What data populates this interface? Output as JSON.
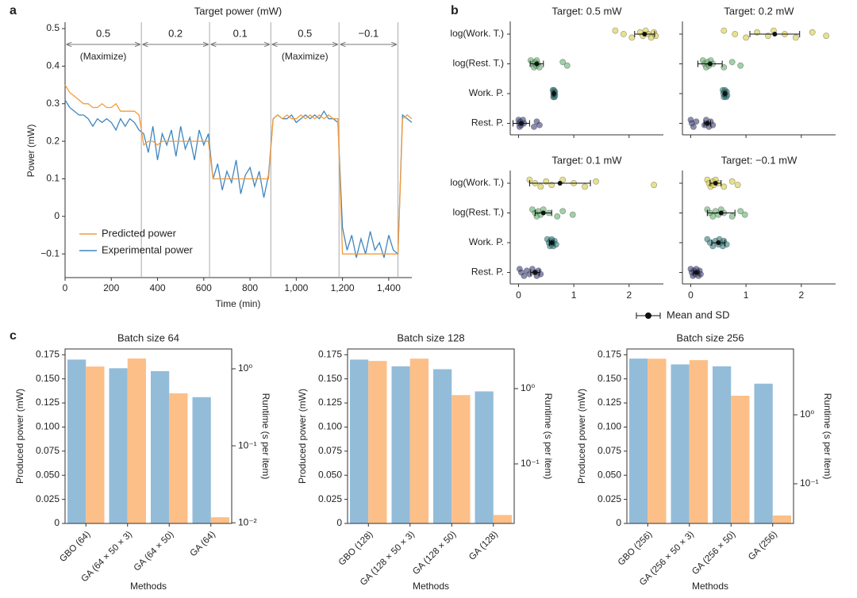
{
  "panel_letters": [
    "a",
    "b",
    "c"
  ],
  "chart_data": [
    {
      "type": "line",
      "title": "Target power (mW)",
      "xlabel": "Time (min)",
      "ylabel": "Power (mW)",
      "xlim": [
        0,
        1500
      ],
      "ylim": [
        -0.163,
        0.517
      ],
      "xticks": [
        0,
        200,
        400,
        600,
        800,
        {
          "value": 1000,
          "label": "1,000"
        },
        {
          "value": 1200,
          "label": "1,200"
        },
        {
          "value": 1400,
          "label": "1,400"
        }
      ],
      "yticks": [
        {
          "value": -0.1,
          "label": "−0.1"
        },
        0,
        0.1,
        0.2,
        0.3,
        0.4,
        0.5
      ],
      "legend": "lower left",
      "segments": [
        {
          "label": "0.5",
          "start": 0,
          "end": 330,
          "note": "(Maximize)"
        },
        {
          "label": "0.2",
          "start": 330,
          "end": 625
        },
        {
          "label": "0.1",
          "start": 625,
          "end": 890
        },
        {
          "label": "0.5",
          "start": 890,
          "end": 1185,
          "note": "(Maximize)"
        },
        {
          "label": "−0.1",
          "start": 1185,
          "end": 1440
        }
      ],
      "x": [
        0,
        20,
        40,
        60,
        80,
        100,
        120,
        140,
        160,
        180,
        200,
        220,
        240,
        260,
        280,
        300,
        320,
        340,
        360,
        380,
        400,
        420,
        440,
        460,
        480,
        500,
        520,
        540,
        560,
        580,
        600,
        620,
        640,
        660,
        680,
        700,
        720,
        740,
        760,
        780,
        800,
        820,
        840,
        860,
        880,
        900,
        920,
        940,
        960,
        980,
        1000,
        1020,
        1040,
        1060,
        1080,
        1100,
        1120,
        1140,
        1160,
        1180,
        1200,
        1220,
        1240,
        1260,
        1280,
        1300,
        1320,
        1340,
        1360,
        1380,
        1400,
        1420,
        1440,
        1460,
        1480,
        1500
      ],
      "series": [
        {
          "name": "Predicted power",
          "color": "#f39b3b",
          "values": [
            0.35,
            0.33,
            0.32,
            0.31,
            0.3,
            0.3,
            0.29,
            0.29,
            0.3,
            0.29,
            0.29,
            0.3,
            0.28,
            0.28,
            0.28,
            0.28,
            0.27,
            0.19,
            0.2,
            0.2,
            0.19,
            0.2,
            0.2,
            0.2,
            0.2,
            0.2,
            0.2,
            0.2,
            0.2,
            0.2,
            0.2,
            0.2,
            0.1,
            0.1,
            0.1,
            0.1,
            0.1,
            0.1,
            0.1,
            0.1,
            0.1,
            0.1,
            0.1,
            0.1,
            0.1,
            0.26,
            0.27,
            0.26,
            0.27,
            0.26,
            0.26,
            0.27,
            0.26,
            0.27,
            0.26,
            0.27,
            0.26,
            0.27,
            0.26,
            0.26,
            -0.1,
            -0.1,
            -0.1,
            -0.1,
            -0.1,
            -0.1,
            -0.1,
            -0.1,
            -0.1,
            -0.1,
            -0.1,
            -0.1,
            -0.1,
            0.26,
            0.27,
            0.26
          ]
        },
        {
          "name": "Experimental power",
          "color": "#3f86c0",
          "values": [
            0.31,
            0.29,
            0.28,
            0.27,
            0.27,
            0.26,
            0.24,
            0.26,
            0.25,
            0.26,
            0.25,
            0.23,
            0.26,
            0.24,
            0.26,
            0.25,
            0.23,
            0.22,
            0.17,
            0.24,
            0.15,
            0.22,
            0.19,
            0.23,
            0.16,
            0.24,
            0.18,
            0.21,
            0.15,
            0.23,
            0.19,
            0.22,
            0.1,
            0.14,
            0.07,
            0.12,
            0.09,
            0.15,
            0.06,
            0.11,
            0.13,
            0.08,
            0.12,
            0.05,
            0.11,
            0.26,
            0.27,
            0.26,
            0.26,
            0.27,
            0.25,
            0.26,
            0.27,
            0.26,
            0.27,
            0.26,
            0.28,
            0.26,
            0.26,
            0.25,
            -0.03,
            -0.09,
            -0.05,
            -0.11,
            -0.06,
            -0.1,
            -0.04,
            -0.09,
            -0.07,
            -0.11,
            -0.05,
            -0.09,
            -0.1,
            0.27,
            0.26,
            0.25
          ]
        }
      ]
    },
    {
      "type": "strip",
      "categories": [
        "log(Work. T.)",
        "log(Rest. T.)",
        "Work. P.",
        "Rest. P."
      ],
      "colors": [
        "#d8cd3f",
        "#63b06d",
        "#2f7f7e",
        "#3d4179"
      ],
      "xlim": [
        -0.15,
        2.62
      ],
      "xticks": [
        0,
        1,
        2
      ],
      "legend": "Mean and SD",
      "panels": [
        {
          "title": "Target: 0.5 mW",
          "rows": [
            {
              "values": [
                1.75,
                1.9,
                2.05,
                2.2,
                2.25,
                2.3,
                2.35,
                2.4,
                2.45,
                2.48
              ],
              "mean": 2.28,
              "sd": 0.18
            },
            {
              "values": [
                0.22,
                0.26,
                0.28,
                0.3,
                0.32,
                0.33,
                0.35,
                0.38,
                0.8,
                0.88
              ],
              "mean": 0.33,
              "sd": 0.12
            },
            {
              "values": [
                0.62,
                0.63,
                0.63,
                0.64,
                0.64,
                0.64,
                0.65,
                0.65,
                0.66,
                0.66
              ],
              "mean": 0.64,
              "sd": 0.01
            },
            {
              "values": [
                0.0,
                0.01,
                0.02,
                0.03,
                0.05,
                0.08,
                0.1,
                0.28,
                0.33,
                0.38
              ],
              "mean": 0.05,
              "sd": 0.15
            }
          ]
        },
        {
          "title": "Target: 0.2 mW",
          "rows": [
            {
              "values": [
                0.6,
                0.8,
                1.0,
                1.2,
                1.4,
                1.5,
                1.7,
                1.9,
                2.2,
                2.45
              ],
              "mean": 1.52,
              "sd": 0.45
            },
            {
              "values": [
                0.22,
                0.25,
                0.28,
                0.3,
                0.33,
                0.36,
                0.4,
                0.6,
                0.75,
                0.9
              ],
              "mean": 0.35,
              "sd": 0.22
            },
            {
              "values": [
                0.58,
                0.59,
                0.6,
                0.61,
                0.62,
                0.62,
                0.63,
                0.64,
                0.65,
                0.66
              ],
              "mean": 0.62,
              "sd": 0.02
            },
            {
              "values": [
                0.0,
                0.02,
                0.05,
                0.1,
                0.25,
                0.28,
                0.3,
                0.33,
                0.36,
                0.4
              ],
              "mean": 0.3,
              "sd": 0.06
            }
          ]
        },
        {
          "title": "Target: 0.1 mW",
          "rows": [
            {
              "values": [
                0.2,
                0.3,
                0.4,
                0.5,
                0.6,
                0.8,
                1.0,
                1.2,
                1.4,
                2.45
              ],
              "mean": 0.75,
              "sd": 0.55
            },
            {
              "values": [
                0.25,
                0.3,
                0.33,
                0.36,
                0.4,
                0.45,
                0.55,
                0.7,
                0.8,
                0.98
              ],
              "mean": 0.45,
              "sd": 0.15
            },
            {
              "values": [
                0.52,
                0.55,
                0.57,
                0.58,
                0.6,
                0.6,
                0.62,
                0.63,
                0.65,
                0.68
              ],
              "mean": 0.6,
              "sd": 0.04
            },
            {
              "values": [
                0.02,
                0.05,
                0.1,
                0.15,
                0.2,
                0.25,
                0.3,
                0.33,
                0.36,
                0.4
              ],
              "mean": 0.3,
              "sd": 0.08
            }
          ]
        },
        {
          "title": "Target: −0.1 mW",
          "rows": [
            {
              "values": [
                0.3,
                0.33,
                0.36,
                0.4,
                0.42,
                0.45,
                0.5,
                0.6,
                0.75,
                0.85
              ],
              "mean": 0.45,
              "sd": 0.1
            },
            {
              "values": [
                0.3,
                0.35,
                0.4,
                0.45,
                0.5,
                0.55,
                0.6,
                0.75,
                0.9,
                0.98
              ],
              "mean": 0.55,
              "sd": 0.25
            },
            {
              "values": [
                0.3,
                0.35,
                0.4,
                0.45,
                0.5,
                0.52,
                0.55,
                0.58,
                0.6,
                0.65
              ],
              "mean": 0.5,
              "sd": 0.12
            },
            {
              "values": [
                0.0,
                0.02,
                0.04,
                0.06,
                0.08,
                0.1,
                0.12,
                0.14,
                0.16,
                0.18
              ],
              "mean": 0.1,
              "sd": 0.05
            }
          ]
        }
      ]
    },
    {
      "type": "bar",
      "title": "Batch size 64",
      "xlabel": "Methods",
      "ylabel": "Produced power (mW)",
      "y2label": "Runtime (s per item)",
      "categories": [
        "GBO (64)",
        "GA (64 × 50 × 3)",
        "GA (64 × 50)",
        "GA (64)"
      ],
      "ylim": [
        0,
        0.181
      ],
      "yticks": [
        0,
        0.025,
        {
          "value": 0.05,
          "label": "0.050"
        },
        0.075,
        {
          "value": 0.1,
          "label": "0.100"
        },
        0.125,
        {
          "value": 0.15,
          "label": "0.150"
        },
        0.175
      ],
      "y2lim": [
        0.0098,
        1.81
      ],
      "y2log": true,
      "y2ticks": [
        {
          "value": 0.01,
          "label": "10⁻²"
        },
        {
          "value": 0.1,
          "label": "10⁻¹"
        },
        {
          "value": 1,
          "label": "10⁰"
        }
      ],
      "series": [
        {
          "color": "#93bcd9",
          "values": [
            0.17,
            0.161,
            0.158,
            0.131
          ]
        },
        {
          "color": "#fdbf88",
          "axis": "y2",
          "values": [
            1.07,
            1.36,
            0.48,
            0.0118
          ]
        }
      ]
    },
    {
      "type": "bar",
      "title": "Batch size 128",
      "xlabel": "Methods",
      "ylabel": "Produced power (mW)",
      "y2label": "Runtime (s per item)",
      "categories": [
        "GBO (128)",
        "GA (128 × 50 × 3)",
        "GA (128 × 50)",
        "GA (128)"
      ],
      "ylim": [
        0,
        0.181
      ],
      "yticks": [
        0,
        0.025,
        {
          "value": 0.05,
          "label": "0.050"
        },
        0.075,
        {
          "value": 0.1,
          "label": "0.100"
        },
        0.125,
        {
          "value": 0.15,
          "label": "0.150"
        },
        0.175
      ],
      "y2lim": [
        0.0162,
        3.36
      ],
      "y2log": true,
      "y2ticks": [
        {
          "value": 0.1,
          "label": "10⁻¹"
        },
        {
          "value": 1,
          "label": "10⁰"
        }
      ],
      "series": [
        {
          "color": "#93bcd9",
          "values": [
            0.17,
            0.163,
            0.16,
            0.137
          ]
        },
        {
          "color": "#fdbf88",
          "axis": "y2",
          "values": [
            2.33,
            2.5,
            0.82,
            0.021
          ]
        }
      ]
    },
    {
      "type": "bar",
      "title": "Batch size 256",
      "xlabel": "Methods",
      "ylabel": "Produced power (mW)",
      "y2label": "Runtime (s per item)",
      "categories": [
        "GBO (256)",
        "GA (256 × 50 × 3)",
        "GA (256 × 50)",
        "GA (256)"
      ],
      "ylim": [
        0,
        0.181
      ],
      "yticks": [
        0,
        0.025,
        {
          "value": 0.05,
          "label": "0.050"
        },
        0.075,
        {
          "value": 0.1,
          "label": "0.100"
        },
        0.125,
        {
          "value": 0.15,
          "label": "0.150"
        },
        0.175
      ],
      "y2lim": [
        0.0266,
        9.0
      ],
      "y2log": true,
      "y2ticks": [
        {
          "value": 0.1,
          "label": "10⁻¹"
        },
        {
          "value": 1,
          "label": "10⁰"
        }
      ],
      "series": [
        {
          "color": "#93bcd9",
          "values": [
            0.171,
            0.165,
            0.163,
            0.145
          ]
        },
        {
          "color": "#fdbf88",
          "axis": "y2",
          "values": [
            6.5,
            6.2,
            1.89,
            0.0347
          ]
        }
      ]
    }
  ]
}
